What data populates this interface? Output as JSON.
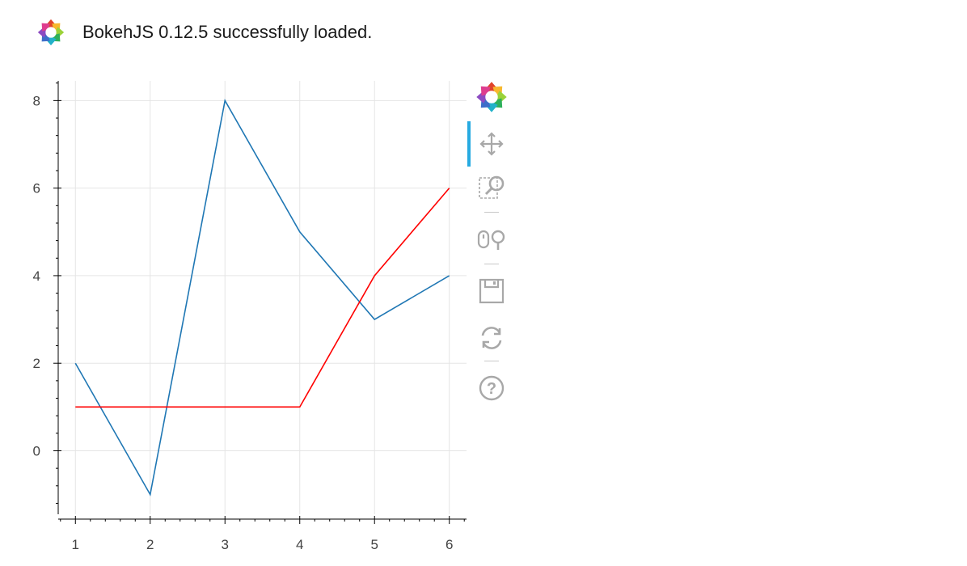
{
  "banner": {
    "text": "BokehJS 0.12.5 successfully loaded."
  },
  "toolbar": {
    "logo_icon": "bokeh-logo-icon",
    "tools": [
      {
        "name": "pan",
        "icon": "pan-icon",
        "active": true
      },
      {
        "name": "box_zoom",
        "icon": "box-zoom-icon",
        "active": false
      },
      {
        "name": "wheel_zoom",
        "icon": "wheel-zoom-icon",
        "active": false
      },
      {
        "name": "save",
        "icon": "save-icon",
        "active": false
      },
      {
        "name": "reset",
        "icon": "reset-icon",
        "active": false
      },
      {
        "name": "help",
        "icon": "help-icon",
        "active": false
      }
    ],
    "accent_color": "#26aae1",
    "icon_color": "#a8a8a8"
  },
  "chart_data": {
    "type": "line",
    "title": "",
    "xlabel": "",
    "ylabel": "",
    "x": [
      1,
      2,
      3,
      4,
      5,
      6
    ],
    "series": [
      {
        "color": "#1f77b4",
        "values": [
          2,
          -1,
          8,
          5,
          3,
          4
        ]
      },
      {
        "color": "#ff0000",
        "values": [
          1,
          1,
          1,
          1,
          4,
          6
        ]
      }
    ],
    "xlim": [
      0.77,
      6.23
    ],
    "ylim": [
      -1.45,
      8.45
    ],
    "xticks": [
      1,
      2,
      3,
      4,
      5,
      6
    ],
    "yticks": [
      0,
      2,
      4,
      6,
      8
    ],
    "grid": true,
    "grid_color": "#e5e5e5"
  }
}
